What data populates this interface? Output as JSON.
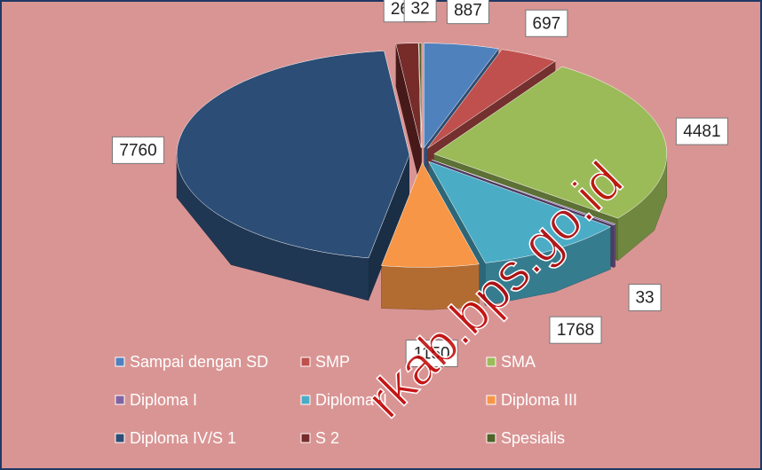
{
  "chart_data": {
    "type": "pie",
    "categories": [
      "Sampai dengan SD",
      "SMP",
      "SMA",
      "Diploma I",
      "Diploma II",
      "Diploma III",
      "Diploma IV/S 1",
      "S 2",
      "Spesialis"
    ],
    "values": [
      887,
      697,
      4481,
      33,
      1768,
      1150,
      7760,
      264,
      32
    ],
    "colors": [
      "#4f81bd",
      "#c0504d",
      "#9bbb59",
      "#8064a2",
      "#4bacc6",
      "#f79646",
      "#2c4d75",
      "#772c2a",
      "#4f6228"
    ],
    "legend": "bottom",
    "watermark": "rkab.bps.go.id"
  }
}
